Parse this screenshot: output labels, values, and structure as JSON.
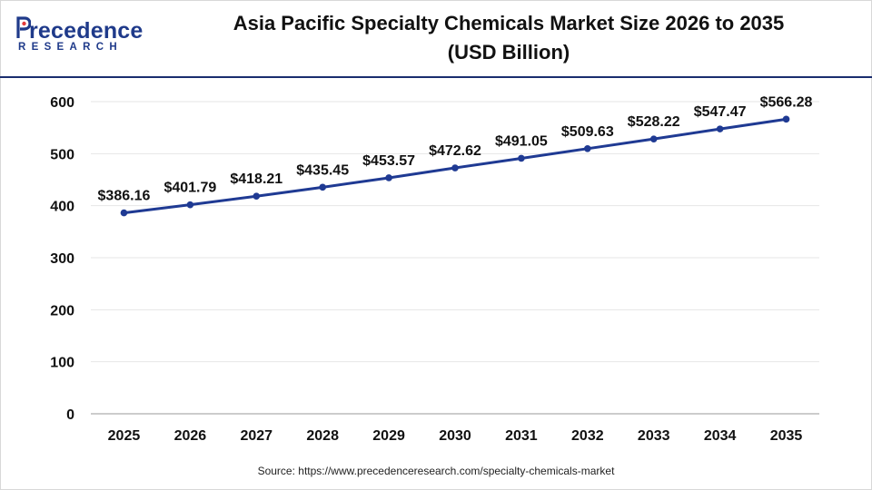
{
  "header": {
    "logo_word": "recedence",
    "logo_sub": "RESEARCH",
    "title_line1": "Asia Pacific Specialty Chemicals Market Size 2026 to 2035",
    "title_line2": "(USD Billion)"
  },
  "source": "Source: https://www.precedenceresearch.com/specialty-chemicals-market",
  "colors": {
    "line": "#1f3a93",
    "brand": "#1f3a8a",
    "grid": "#e6e6e6",
    "rule": "#1a2d6e"
  },
  "chart_data": {
    "type": "line",
    "title": "Asia Pacific Specialty Chemicals Market Size 2026 to 2035 (USD Billion)",
    "xlabel": "",
    "ylabel": "",
    "x": [
      "2025",
      "2026",
      "2027",
      "2028",
      "2029",
      "2030",
      "2031",
      "2032",
      "2033",
      "2034",
      "2035"
    ],
    "series": [
      {
        "values": [
          386.16,
          401.79,
          418.21,
          435.45,
          453.57,
          472.62,
          491.05,
          509.63,
          528.22,
          547.47,
          566.28
        ]
      }
    ],
    "data_labels": [
      "$386.16",
      "$401.79",
      "$418.21",
      "$435.45",
      "$453.57",
      "$472.62",
      "$491.05",
      "$509.63",
      "$528.22",
      "$547.47",
      "$566.28"
    ],
    "ylim": [
      0,
      600
    ],
    "yticks": [
      0,
      100,
      200,
      300,
      400,
      500,
      600
    ],
    "grid": true,
    "legend": "none"
  }
}
